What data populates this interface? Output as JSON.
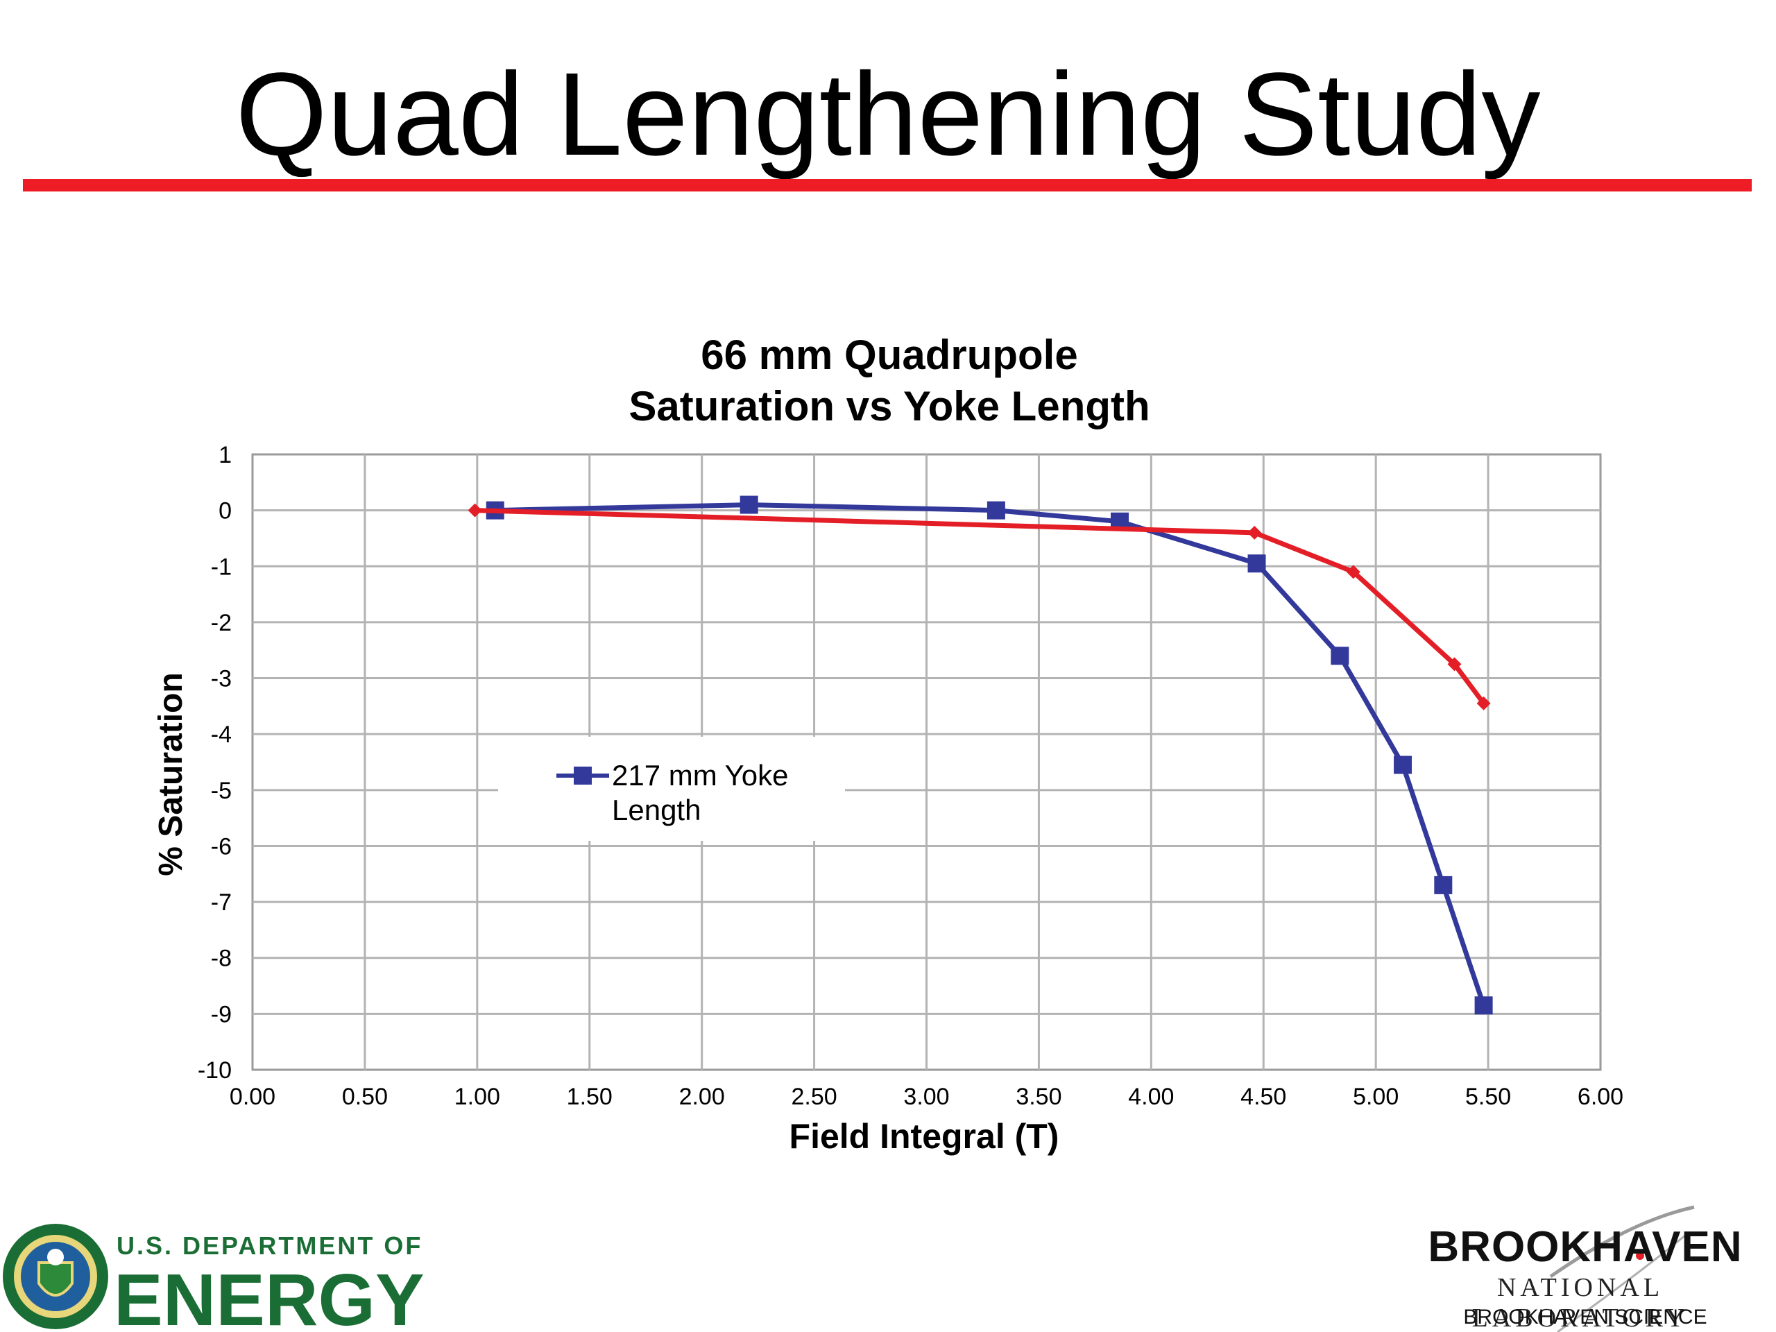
{
  "slide": {
    "title": "Quad Lengthening Study",
    "accent_color": "#ee1c25"
  },
  "chart_data": {
    "type": "line",
    "title": [
      "66  mm Quadrupole",
      "Saturation vs Yoke Length"
    ],
    "xlabel": "Field Integral (T)",
    "ylabel": "% Saturation",
    "xlim": [
      0,
      6
    ],
    "ylim": [
      -10,
      1
    ],
    "xticks": [
      "0.00",
      "0.50",
      "1.00",
      "1.50",
      "2.00",
      "2.50",
      "3.00",
      "3.50",
      "4.00",
      "4.50",
      "5.00",
      "5.50",
      "6.00"
    ],
    "yticks": [
      "1",
      "0",
      "-1",
      "-2",
      "-3",
      "-4",
      "-5",
      "-6",
      "-7",
      "-8",
      "-9",
      "-10"
    ],
    "grid": true,
    "legend_position": "center-left",
    "series": [
      {
        "name": "217 mm Yoke Length",
        "color": "#33399b",
        "marker": "square",
        "x": [
          1.08,
          2.21,
          3.31,
          3.86,
          4.47,
          4.84,
          5.12,
          5.3,
          5.48
        ],
        "y": [
          0.0,
          0.1,
          0.0,
          -0.2,
          -0.95,
          -2.6,
          -4.55,
          -6.7,
          -8.85
        ]
      },
      {
        "name": "",
        "color": "#e41e26",
        "marker": "diamond",
        "x": [
          0.99,
          4.46,
          4.9,
          5.35,
          5.48
        ],
        "y": [
          0.0,
          -0.4,
          -1.1,
          -2.75,
          -3.45
        ]
      }
    ]
  },
  "footer": {
    "doe": {
      "line1": "U.S. DEPARTMENT OF",
      "line2": "ENERGY",
      "primary_color": "#1a6e35"
    },
    "bnl": {
      "name": "BROOKHAVEN",
      "subtitle": "NATIONAL LABORATORY",
      "associates": "BROOKHAVEN SCIENCE ASSOCIATES"
    }
  }
}
